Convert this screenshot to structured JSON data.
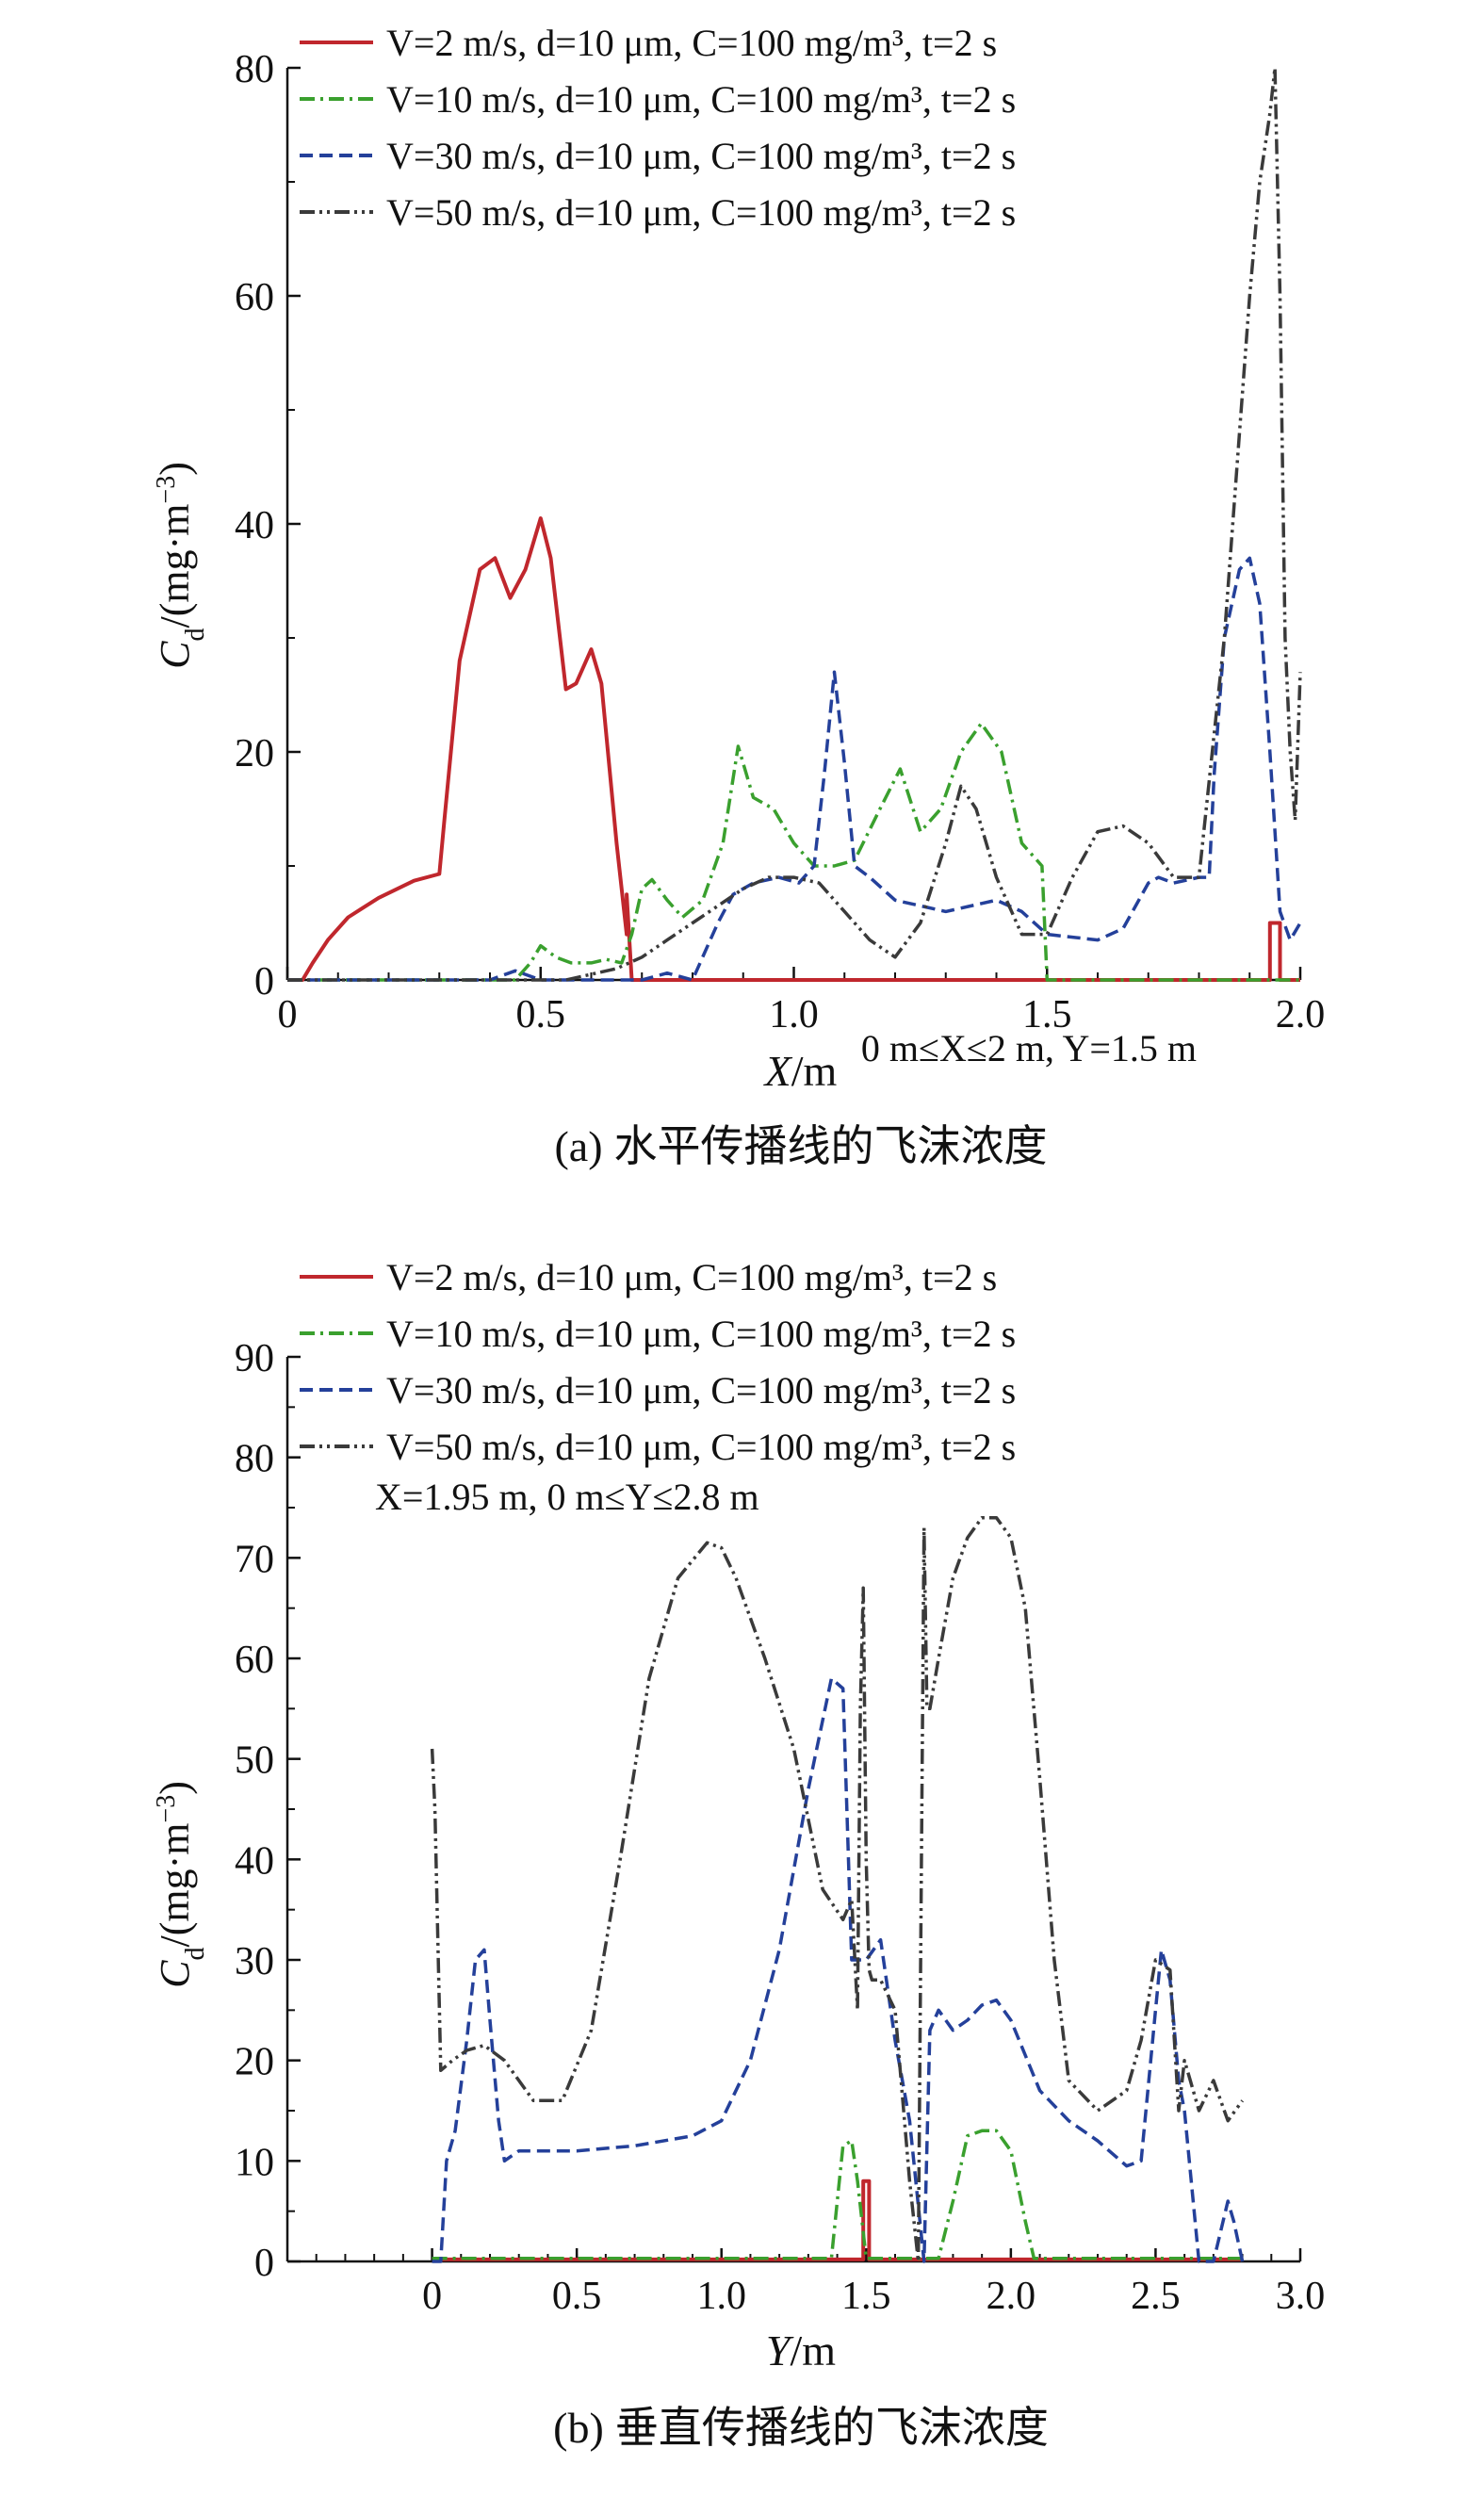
{
  "colors": {
    "v2": "#c0272d",
    "v10": "#3aa02e",
    "v30": "#24409a",
    "v50": "#3a3a3a",
    "axis": "#111111"
  },
  "chart_data": [
    {
      "type": "line",
      "title": "",
      "caption_label": "(a)",
      "caption_text": "水平传播线的飞沫浓度",
      "xlabel_var": "X",
      "xlabel_unit": "/m",
      "ylabel_var": "C",
      "ylabel_sub": "d",
      "ylabel_unit": "/(mg·m",
      "ylabel_exp": "−3",
      "ylabel_close": ")",
      "xlim": [
        0,
        2.0
      ],
      "ylim": [
        0,
        80
      ],
      "xticks": [
        0,
        0.5,
        1.0,
        1.5,
        2.0
      ],
      "xtick_labels": [
        "0",
        "0.5",
        "1.0",
        "1.5",
        "2.0"
      ],
      "yticks": [
        0,
        20,
        40,
        60,
        80
      ],
      "ytick_labels": [
        "0",
        "20",
        "40",
        "60",
        "80"
      ],
      "annotation": "0 m≤X≤2 m, Y=1.5 m",
      "legend": [
        {
          "key": "v2",
          "style": "solid",
          "text": "V=2 m/s, d=10 μm, C=100 mg/m³, t=2 s"
        },
        {
          "key": "v10",
          "style": "dashdot",
          "text": "V=10 m/s, d=10 μm, C=100 mg/m³, t=2 s"
        },
        {
          "key": "v30",
          "style": "dashed",
          "text": "V=30 m/s, d=10 μm, C=100 mg/m³, t=2 s"
        },
        {
          "key": "v50",
          "style": "dashdotdot",
          "text": "V=50 m/s, d=10 μm, C=100 mg/m³, t=2 s"
        }
      ],
      "series": [
        {
          "key": "v2",
          "name": "V=2 m/s",
          "x": [
            0.0,
            0.03,
            0.05,
            0.08,
            0.12,
            0.18,
            0.25,
            0.3,
            0.31,
            0.34,
            0.38,
            0.41,
            0.44,
            0.47,
            0.5,
            0.52,
            0.55,
            0.57,
            0.6,
            0.62,
            0.65,
            0.67,
            0.67,
            0.68,
            0.7,
            1.0,
            1.5,
            1.94,
            1.94,
            1.96,
            1.96,
            2.0
          ],
          "y": [
            0,
            0,
            1.5,
            3.5,
            5.5,
            7.2,
            8.7,
            9.3,
            14,
            28,
            36,
            37,
            33.5,
            36,
            40.5,
            37,
            25.5,
            26,
            29,
            26,
            12,
            4,
            7.5,
            0,
            0,
            0,
            0,
            0,
            5,
            5,
            0,
            0
          ]
        },
        {
          "key": "v10",
          "name": "V=10 m/s",
          "x": [
            0.0,
            0.45,
            0.48,
            0.5,
            0.53,
            0.56,
            0.6,
            0.63,
            0.66,
            0.68,
            0.7,
            0.72,
            0.75,
            0.78,
            0.82,
            0.86,
            0.89,
            0.92,
            0.96,
            1.0,
            1.04,
            1.08,
            1.12,
            1.17,
            1.21,
            1.25,
            1.29,
            1.33,
            1.37,
            1.41,
            1.45,
            1.49,
            1.5,
            1.51,
            2.0
          ],
          "y": [
            0,
            0,
            1.5,
            3,
            2,
            1.5,
            1.5,
            1.8,
            1.5,
            4,
            8,
            8.8,
            7,
            5.5,
            7,
            12,
            20.5,
            16,
            15,
            12,
            10,
            10,
            10.5,
            15,
            18.5,
            13,
            15,
            20,
            22.5,
            20,
            12,
            10,
            0,
            0,
            0
          ]
        },
        {
          "key": "v30",
          "name": "V=30 m/s",
          "x": [
            0.0,
            0.4,
            0.45,
            0.5,
            0.7,
            0.75,
            0.8,
            0.83,
            0.85,
            0.88,
            0.92,
            0.97,
            1.01,
            1.04,
            1.06,
            1.08,
            1.1,
            1.12,
            1.15,
            1.2,
            1.3,
            1.4,
            1.45,
            1.5,
            1.6,
            1.65,
            1.7,
            1.72,
            1.75,
            1.8,
            1.82,
            1.83,
            1.85,
            1.88,
            1.9,
            1.92,
            1.94,
            1.96,
            1.98,
            2.0
          ],
          "y": [
            0,
            0,
            0.8,
            0,
            0,
            0.6,
            0,
            3,
            5,
            7.5,
            8.5,
            9,
            8.5,
            10,
            18,
            27,
            19,
            10,
            9,
            7,
            6,
            7,
            6,
            4,
            3.5,
            4.5,
            8.5,
            9,
            8.5,
            9,
            9,
            18,
            30,
            36,
            37,
            33,
            20,
            6,
            3.5,
            5
          ]
        },
        {
          "key": "v50",
          "name": "V=50 m/s",
          "x": [
            0.0,
            0.55,
            0.6,
            0.65,
            0.7,
            0.75,
            0.8,
            0.85,
            0.9,
            0.95,
            1.0,
            1.05,
            1.1,
            1.15,
            1.2,
            1.25,
            1.3,
            1.33,
            1.36,
            1.4,
            1.45,
            1.5,
            1.55,
            1.6,
            1.65,
            1.7,
            1.75,
            1.8,
            1.85,
            1.88,
            1.9,
            1.92,
            1.94,
            1.95,
            1.96,
            1.97,
            1.98,
            1.99,
            2.0
          ],
          "y": [
            0,
            0,
            0.5,
            1,
            2,
            3.5,
            5,
            6.5,
            8,
            9,
            9,
            8.5,
            6,
            3.5,
            2,
            5,
            12,
            17,
            15,
            9,
            4,
            4,
            9,
            13,
            13.5,
            12,
            9,
            9,
            30,
            48,
            60,
            70,
            76,
            80,
            60,
            30,
            20,
            14,
            27
          ]
        }
      ]
    },
    {
      "type": "line",
      "title": "",
      "caption_label": "(b)",
      "caption_text": "垂直传播线的飞沫浓度",
      "xlabel_var": "Y",
      "xlabel_unit": "/m",
      "ylabel_var": "C",
      "ylabel_sub": "d",
      "ylabel_unit": "/(mg·m",
      "ylabel_exp": "−3",
      "ylabel_close": ")",
      "xlim": [
        -0.5,
        3.0
      ],
      "ylim": [
        0,
        90
      ],
      "xticks": [
        0,
        0.5,
        1.0,
        1.5,
        2.0,
        2.5,
        3.0
      ],
      "xtick_labels": [
        "0",
        "0.5",
        "1.0",
        "1.5",
        "2.0",
        "2.5",
        "3.0"
      ],
      "yticks": [
        0,
        10,
        20,
        30,
        40,
        50,
        60,
        70,
        80,
        90
      ],
      "ytick_labels": [
        "0",
        "10",
        "20",
        "30",
        "40",
        "50",
        "60",
        "70",
        "80",
        "90"
      ],
      "annotation": "X=1.95 m, 0 m≤Y≤2.8 m",
      "legend": [
        {
          "key": "v2",
          "style": "solid",
          "text": "V=2 m/s, d=10 μm, C=100 mg/m³, t=2 s"
        },
        {
          "key": "v10",
          "style": "dashdot",
          "text": "V=10 m/s, d=10 μm, C=100 mg/m³, t=2 s"
        },
        {
          "key": "v30",
          "style": "dashed",
          "text": "V=30 m/s, d=10 μm, C=100 mg/m³, t=2 s"
        },
        {
          "key": "v50",
          "style": "dashdotdot",
          "text": "V=50 m/s, d=10 μm, C=100 mg/m³, t=2 s"
        }
      ],
      "series": [
        {
          "key": "v2",
          "name": "V=2 m/s",
          "x": [
            0.0,
            1.49,
            1.49,
            1.51,
            1.51,
            2.8
          ],
          "y": [
            0.2,
            0.2,
            8,
            8,
            0.2,
            0.2
          ]
        },
        {
          "key": "v10",
          "name": "V=10 m/s",
          "x": [
            0.0,
            1.38,
            1.4,
            1.42,
            1.45,
            1.47,
            1.5,
            1.75,
            1.8,
            1.85,
            1.9,
            1.95,
            2.0,
            2.05,
            2.08,
            2.8
          ],
          "y": [
            0.3,
            0.3,
            6,
            11.5,
            12,
            8,
            0.3,
            0.3,
            6,
            12.5,
            13,
            13,
            11,
            4,
            0.3,
            0.3
          ]
        },
        {
          "key": "v30",
          "name": "V=30 m/s",
          "x": [
            0.0,
            0.03,
            0.05,
            0.08,
            0.12,
            0.15,
            0.18,
            0.2,
            0.23,
            0.25,
            0.3,
            0.5,
            0.7,
            0.9,
            1.0,
            1.1,
            1.2,
            1.3,
            1.38,
            1.42,
            1.45,
            1.5,
            1.55,
            1.6,
            1.65,
            1.7,
            1.72,
            1.75,
            1.8,
            1.85,
            1.9,
            1.95,
            2.0,
            2.1,
            2.2,
            2.3,
            2.4,
            2.45,
            2.5,
            2.52,
            2.55,
            2.58,
            2.6,
            2.65,
            2.7,
            2.75,
            2.77,
            2.8
          ],
          "y": [
            0,
            0,
            10,
            13,
            22,
            30,
            31,
            24,
            14,
            10,
            11,
            11,
            11.5,
            12.5,
            14,
            20,
            31,
            47,
            58,
            57,
            30,
            30,
            32,
            22,
            14,
            0,
            23,
            25,
            23,
            24,
            25.5,
            26,
            24,
            17,
            14,
            12,
            9.5,
            10,
            25,
            31,
            28,
            18,
            15,
            0,
            0,
            6,
            4,
            0
          ]
        },
        {
          "key": "v50",
          "name": "V=50 m/s",
          "x": [
            0.0,
            0.01,
            0.03,
            0.07,
            0.12,
            0.18,
            0.25,
            0.35,
            0.45,
            0.55,
            0.65,
            0.75,
            0.85,
            0.95,
            1.0,
            1.05,
            1.15,
            1.25,
            1.35,
            1.42,
            1.45,
            1.47,
            1.48,
            1.49,
            1.5,
            1.51,
            1.52,
            1.55,
            1.6,
            1.65,
            1.68,
            1.7,
            1.71,
            1.72,
            1.75,
            1.8,
            1.85,
            1.9,
            1.95,
            2.0,
            2.05,
            2.1,
            2.15,
            2.2,
            2.3,
            2.4,
            2.45,
            2.5,
            2.55,
            2.58,
            2.6,
            2.62,
            2.65,
            2.7,
            2.75,
            2.8
          ],
          "y": [
            51,
            45,
            19,
            20,
            21,
            21.5,
            20,
            16,
            16,
            23,
            40,
            58,
            68,
            71.5,
            71,
            68,
            60,
            51,
            37,
            34,
            36,
            25,
            55,
            67,
            40,
            29,
            28,
            28,
            25,
            8,
            0,
            73,
            55,
            55,
            60,
            68,
            72,
            74,
            74,
            72,
            65,
            48,
            30,
            18,
            15,
            17,
            22,
            30,
            29,
            15,
            20,
            18,
            15,
            18,
            14,
            16
          ]
        }
      ]
    }
  ]
}
